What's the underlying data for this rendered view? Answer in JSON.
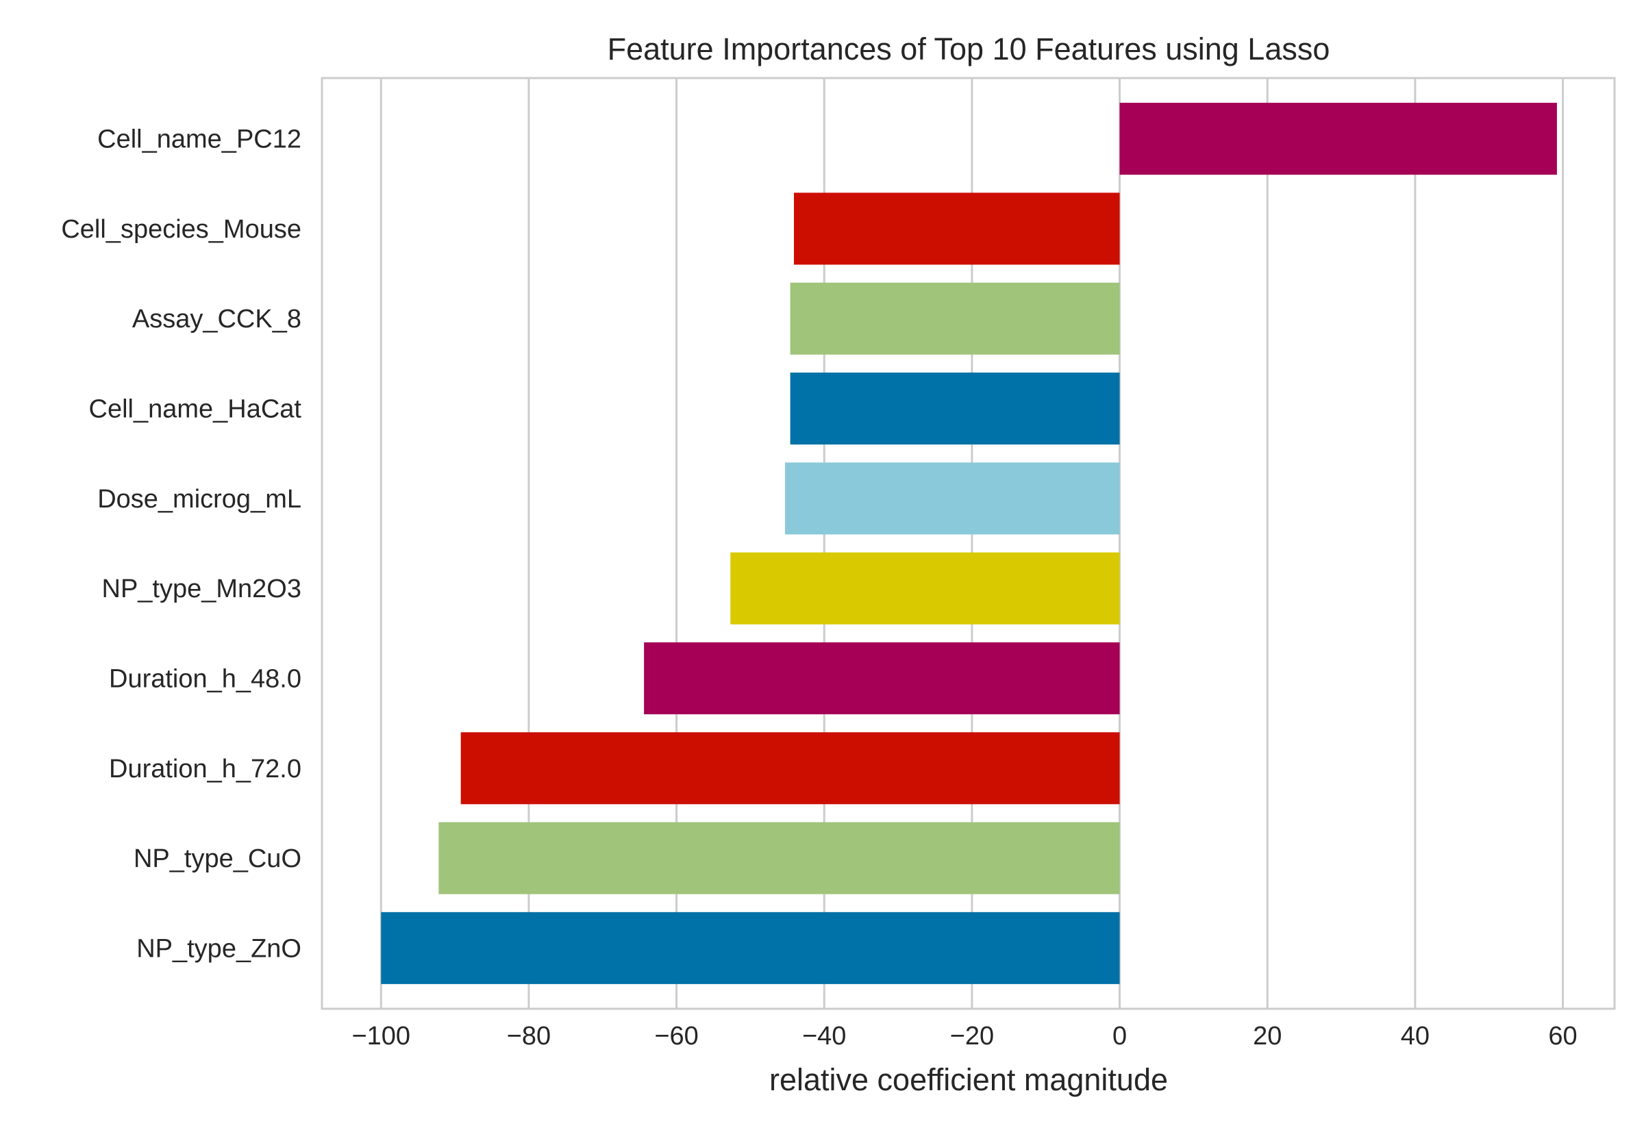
{
  "chart_data": {
    "type": "bar",
    "orientation": "horizontal",
    "title": "Feature Importances of Top 10 Features using Lasso",
    "xlabel": "relative coefficient magnitude",
    "ylabel": "",
    "xlim": [
      -108,
      67
    ],
    "xticks": [
      -100,
      -80,
      -60,
      -40,
      -20,
      0,
      20,
      40,
      60
    ],
    "xtick_labels": [
      "−100",
      "−80",
      "−60",
      "−40",
      "−20",
      "0",
      "20",
      "40",
      "60"
    ],
    "grid": true,
    "categories": [
      "NP_type_ZnO",
      "NP_type_CuO",
      "Duration_h_72.0",
      "Duration_h_48.0",
      "NP_type_Mn2O3",
      "Dose_microg_mL",
      "Cell_name_HaCat",
      "Assay_CCK_8",
      "Cell_species_Mouse",
      "Cell_name_PC12"
    ],
    "values": [
      -100.0,
      -92.2,
      -89.2,
      -64.4,
      -52.7,
      -45.3,
      -44.6,
      -44.6,
      -44.1,
      59.2
    ],
    "colors": [
      "#0072a7",
      "#9fc47a",
      "#cc0e00",
      "#a50056",
      "#d8c900",
      "#89c9da",
      "#0072a7",
      "#9fc47a",
      "#cc0e00",
      "#a50056"
    ]
  }
}
